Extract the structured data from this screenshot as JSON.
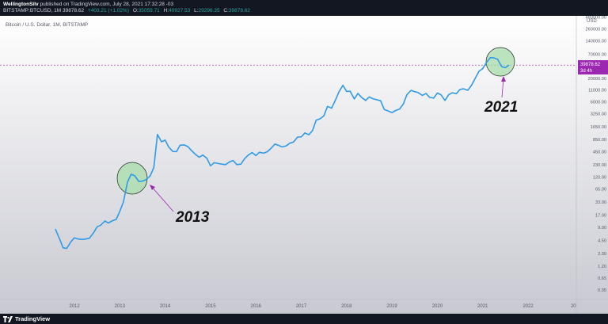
{
  "header": {
    "author": "WellingtonSilv",
    "published": "published on TradingView.com, July 28, 2021 17:32:28 -03",
    "symbol": "BITSTAMP:BTCUSD, 1M",
    "price": "39878.62",
    "change": "+403.21 (+1.02%)",
    "o_label": "O:",
    "o_value": "35059.71",
    "h_label": "H:",
    "h_value": "40927.53",
    "l_label": "L:",
    "l_value": "29296.35",
    "c_label": "C:",
    "c_value": "39878.62"
  },
  "footer": {
    "brand": "TradingView"
  },
  "colors": {
    "line": "#2f9be8",
    "circle_fill": "#a7dca9",
    "price_label_bg": "#9c27b0",
    "arrow": "#9c27b0"
  },
  "chart_data": {
    "type": "line",
    "title": "Bitcoin / U.S. Dollar, 1M, BITSTAMP",
    "y_scale": "log",
    "currency": "USD",
    "y_ticks": [
      "480000.00",
      "260000.00",
      "140000.00",
      "70000.00",
      "20000.00",
      "11000.00",
      "6000.00",
      "3250.00",
      "1650.00",
      "850.00",
      "450.00",
      "230.00",
      "120.00",
      "65.00",
      "33.00",
      "17.00",
      "9.00",
      "4.50",
      "2.30",
      "1.20",
      "0.65",
      "0.35"
    ],
    "x_ticks": [
      "2012",
      "2013",
      "2014",
      "2015",
      "2016",
      "2017",
      "2018",
      "2019",
      "2020",
      "2021",
      "2022",
      "20"
    ],
    "last_price_label": "39878.62",
    "countdown_label": "3d 4h",
    "annotations": [
      "2013",
      "2021"
    ],
    "series": [
      {
        "x": [
          2011.58,
          2011.67,
          2011.75,
          2011.83,
          2011.92,
          2012.0,
          2012.08,
          2012.17,
          2012.25,
          2012.33,
          2012.42,
          2012.5,
          2012.58,
          2012.67,
          2012.75,
          2012.83,
          2012.92,
          2013.0,
          2013.08,
          2013.17,
          2013.25,
          2013.33,
          2013.42,
          2013.5,
          2013.58,
          2013.67,
          2013.75,
          2013.83,
          2013.92,
          2014.0,
          2014.08,
          2014.17,
          2014.25,
          2014.33,
          2014.42,
          2014.5,
          2014.58,
          2014.67,
          2014.75,
          2014.83,
          2014.92,
          2015.0,
          2015.08,
          2015.17,
          2015.25,
          2015.33,
          2015.42,
          2015.5,
          2015.58,
          2015.67,
          2015.75,
          2015.83,
          2015.92,
          2016.0,
          2016.08,
          2016.17,
          2016.25,
          2016.33,
          2016.42,
          2016.5,
          2016.58,
          2016.67,
          2016.75,
          2016.83,
          2016.92,
          2017.0,
          2017.08,
          2017.17,
          2017.25,
          2017.33,
          2017.42,
          2017.5,
          2017.58,
          2017.67,
          2017.75,
          2017.83,
          2017.92,
          2018.0,
          2018.08,
          2018.17,
          2018.25,
          2018.33,
          2018.42,
          2018.5,
          2018.58,
          2018.67,
          2018.75,
          2018.83,
          2018.92,
          2019.0,
          2019.08,
          2019.17,
          2019.25,
          2019.33,
          2019.42,
          2019.5,
          2019.58,
          2019.67,
          2019.75,
          2019.83,
          2019.92,
          2020.0,
          2020.08,
          2020.17,
          2020.25,
          2020.33,
          2020.42,
          2020.5,
          2020.58,
          2020.67,
          2020.75,
          2020.83,
          2020.92,
          2021.0,
          2021.08,
          2021.17,
          2021.25,
          2021.33,
          2021.42,
          2021.5,
          2021.58
        ],
        "y": [
          8.2,
          5.0,
          3.1,
          3.0,
          4.2,
          5.2,
          4.9,
          4.8,
          4.9,
          5.1,
          6.7,
          9.2,
          10.0,
          12.4,
          11.2,
          12.5,
          13.5,
          20.4,
          33.4,
          93,
          140,
          129,
          96,
          98,
          106,
          128,
          198,
          1100,
          750,
          820,
          570,
          455,
          450,
          630,
          640,
          585,
          480,
          390,
          338,
          378,
          320,
          217,
          254,
          244,
          236,
          230,
          265,
          285,
          230,
          236,
          312,
          377,
          430,
          368,
          437,
          416,
          448,
          531,
          670,
          624,
          575,
          610,
          700,
          742,
          960,
          970,
          1190,
          1080,
          1350,
          2300,
          2500,
          2880,
          4700,
          4300,
          6400,
          9900,
          14000,
          10200,
          10300,
          6900,
          9200,
          7500,
          6400,
          7700,
          7000,
          6600,
          6300,
          4000,
          3700,
          3400,
          3800,
          4100,
          5300,
          8600,
          10800,
          10100,
          9600,
          8300,
          9200,
          7500,
          7200,
          9400,
          8600,
          6400,
          8600,
          9500,
          9100,
          11300,
          11700,
          10800,
          13800,
          19700,
          29000,
          33100,
          45200,
          58800,
          57800,
          53700,
          36700,
          35000,
          39878
        ]
      }
    ]
  }
}
